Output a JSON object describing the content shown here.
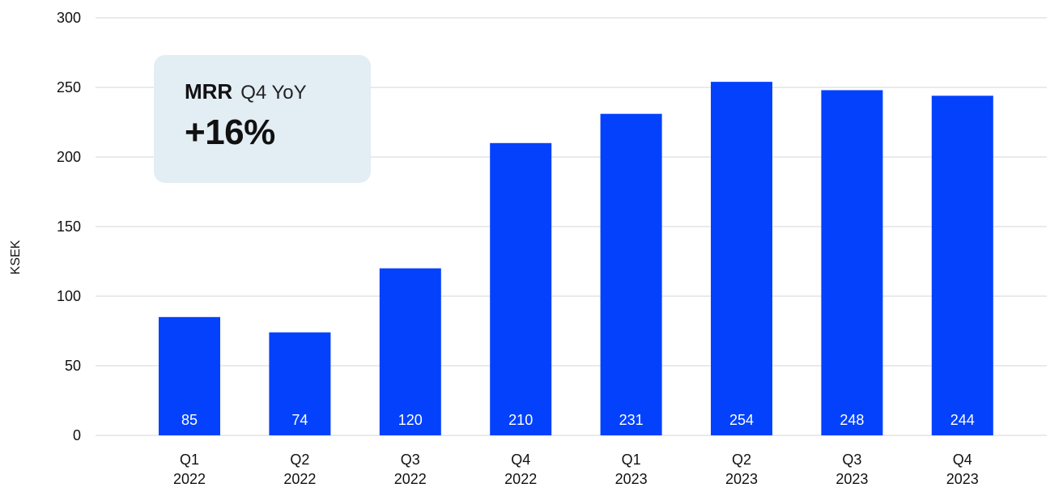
{
  "chart_data": {
    "type": "bar",
    "categories": [
      [
        "Q1",
        "2022"
      ],
      [
        "Q2",
        "2022"
      ],
      [
        "Q3",
        "2022"
      ],
      [
        "Q4",
        "2022"
      ],
      [
        "Q1",
        "2023"
      ],
      [
        "Q2",
        "2023"
      ],
      [
        "Q3",
        "2023"
      ],
      [
        "Q4",
        "2023"
      ]
    ],
    "values": [
      85,
      74,
      120,
      210,
      231,
      254,
      248,
      244
    ],
    "data_labels": [
      "85",
      "74",
      "120",
      "210",
      "231",
      "254",
      "248",
      "244"
    ],
    "title": "",
    "xlabel": "",
    "ylabel": "KSEK",
    "ylim": [
      0,
      300
    ],
    "yticks": [
      0,
      50,
      100,
      150,
      200,
      250,
      300
    ],
    "grid": true,
    "bar_color": "#0341fc",
    "grid_color": "#d6d6d6",
    "data_label_color": "#ffffff"
  },
  "callout": {
    "metric": "MRR",
    "period": "Q4 YoY",
    "change": "+16%",
    "background": "#e3edf4"
  }
}
